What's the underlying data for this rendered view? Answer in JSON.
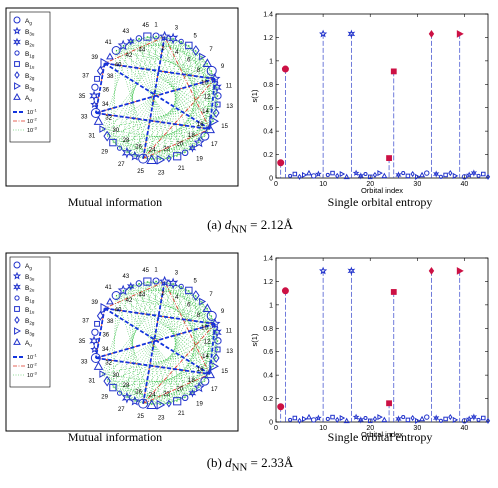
{
  "colors": {
    "marker_blue": "#2233cc",
    "marker_red": "#cc1144",
    "line_strong": "#1133dd",
    "line_medium": "#dd3322",
    "line_weak": "#22bb33",
    "stem": "#3344cc"
  },
  "panels": [
    {
      "subcaption": "(a) d_NN = 2.12Å",
      "left_caption": "Mutual information",
      "right_caption": "Single orbital entropy"
    },
    {
      "subcaption": "(b) d_NN = 2.33Å",
      "left_caption": "Mutual information",
      "right_caption": "Single orbital entropy"
    }
  ],
  "legend": {
    "symmetry_entries": [
      {
        "label": "A_g",
        "marker": "circle"
      },
      {
        "label": "B_3u",
        "marker": "star"
      },
      {
        "label": "B_2u",
        "marker": "hexagram"
      },
      {
        "label": "B_1g",
        "marker": "circle-small"
      },
      {
        "label": "B_1u",
        "marker": "square"
      },
      {
        "label": "B_2g",
        "marker": "diamond"
      },
      {
        "label": "B_3g",
        "marker": "triangle-right"
      },
      {
        "label": "A_u",
        "marker": "triangle-up"
      }
    ],
    "line_entries": [
      {
        "label": "10^-1",
        "style": "strong"
      },
      {
        "label": "10^-2",
        "style": "medium"
      },
      {
        "label": "10^-3",
        "style": "weak"
      }
    ]
  },
  "circle_labels": [
    "1",
    "3",
    "5",
    "7",
    "9",
    "11",
    "13",
    "15",
    "17",
    "19",
    "21",
    "23",
    "25",
    "27",
    "29",
    "31",
    "33",
    "35",
    "37",
    "39",
    "41",
    "43",
    "45"
  ],
  "inner_labels": [
    "2",
    "4",
    "6",
    "8",
    "10",
    "12",
    "14",
    "16",
    "18",
    "20",
    "22",
    "24",
    "26",
    "28",
    "30",
    "32",
    "34",
    "36",
    "38",
    "40",
    "42",
    "44"
  ],
  "chart_data": [
    {
      "type": "scatter",
      "title": "",
      "xlabel": "Orbital index",
      "ylabel": "s(1)",
      "xlim": [
        0,
        45
      ],
      "ylim": [
        0,
        1.4
      ],
      "xticks": [
        0,
        10,
        20,
        30,
        40
      ],
      "yticks": [
        0,
        0.2,
        0.4,
        0.6,
        0.8,
        1.0,
        1.2,
        1.4
      ],
      "large_points": [
        {
          "x": 1,
          "y": 0.13,
          "marker": "circle"
        },
        {
          "x": 2,
          "y": 0.93,
          "marker": "circle"
        },
        {
          "x": 10,
          "y": 1.23,
          "marker": "star"
        },
        {
          "x": 16,
          "y": 1.23,
          "marker": "hexagram"
        },
        {
          "x": 24,
          "y": 0.17,
          "marker": "square"
        },
        {
          "x": 25,
          "y": 0.91,
          "marker": "square"
        },
        {
          "x": 33,
          "y": 1.23,
          "marker": "diamond"
        },
        {
          "x": 39,
          "y": 1.23,
          "marker": "triangle-right"
        }
      ]
    },
    {
      "type": "scatter",
      "title": "",
      "xlabel": "Orbital index",
      "ylabel": "s(1)",
      "xlim": [
        0,
        45
      ],
      "ylim": [
        0,
        1.4
      ],
      "xticks": [
        0,
        10,
        20,
        30,
        40
      ],
      "yticks": [
        0,
        0.2,
        0.4,
        0.6,
        0.8,
        1.0,
        1.2,
        1.4
      ],
      "large_points": [
        {
          "x": 1,
          "y": 0.13,
          "marker": "circle"
        },
        {
          "x": 2,
          "y": 1.12,
          "marker": "circle"
        },
        {
          "x": 10,
          "y": 1.29,
          "marker": "star"
        },
        {
          "x": 16,
          "y": 1.29,
          "marker": "hexagram"
        },
        {
          "x": 24,
          "y": 0.16,
          "marker": "square"
        },
        {
          "x": 25,
          "y": 1.11,
          "marker": "square"
        },
        {
          "x": 33,
          "y": 1.29,
          "marker": "diamond"
        },
        {
          "x": 39,
          "y": 1.29,
          "marker": "triangle-right"
        }
      ]
    }
  ]
}
